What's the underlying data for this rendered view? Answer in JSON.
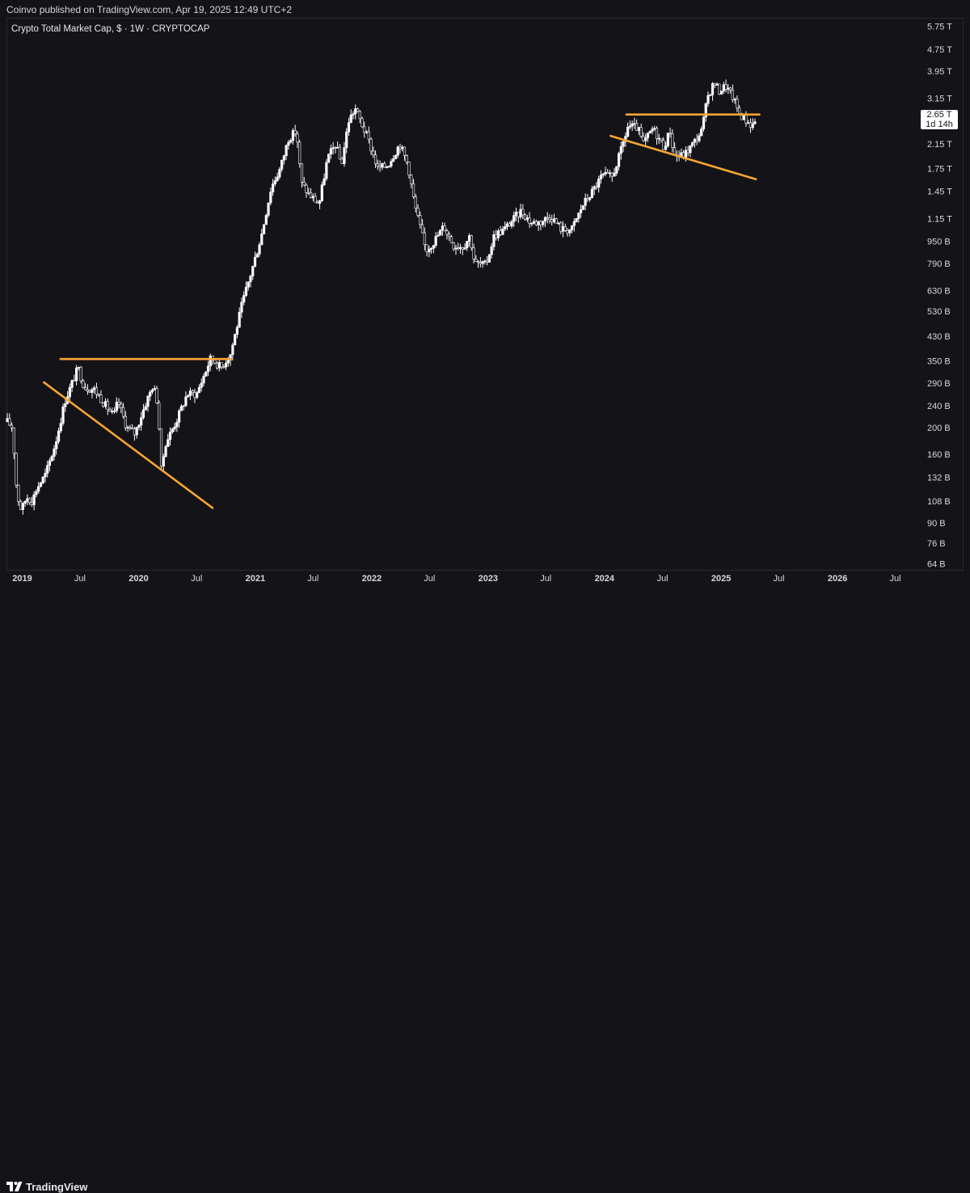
{
  "header": {
    "published_text": "Coinvo published on TradingView.com, Apr 19, 2025 12:49 UTC+2"
  },
  "legend": {
    "title": "Crypto Total Market Cap, $ · 1W · CRYPTOCAP"
  },
  "price_label": {
    "value": "2.65 T",
    "countdown": "1d 14h"
  },
  "footer": {
    "brand": "TradingView",
    "logo_icon": "tradingview-logo-icon"
  },
  "colors": {
    "background": "#141318",
    "candle": "#ffffff",
    "trendline": "#f7a531",
    "axis_text": "#d8d8dc"
  },
  "chart_data": {
    "type": "candlestick",
    "title": "Crypto Total Market Cap, $ · 1W · CRYPTOCAP",
    "y_scale": "log",
    "y_unit": "USD",
    "y_ticks": [
      "5.75 T",
      "4.75 T",
      "3.95 T",
      "3.15 T",
      "2.65 T",
      "2.15 T",
      "1.75 T",
      "1.45 T",
      "1.15 T",
      "950 B",
      "790 B",
      "630 B",
      "530 B",
      "430 B",
      "350 B",
      "290 B",
      "240 B",
      "200 B",
      "160 B",
      "132 B",
      "108 B",
      "90 B",
      "76 B",
      "64 B"
    ],
    "y_tick_values": [
      5750,
      4750,
      3950,
      3150,
      2650,
      2150,
      1750,
      1450,
      1150,
      950,
      790,
      630,
      530,
      430,
      350,
      290,
      240,
      200,
      160,
      132,
      108,
      90,
      76,
      64
    ],
    "x_ticks": [
      "2019",
      "Jul",
      "2020",
      "Jul",
      "2021",
      "Jul",
      "2022",
      "Jul",
      "2023",
      "Jul",
      "2024",
      "Jul",
      "2025",
      "Jul",
      "2026",
      "Jul"
    ],
    "x_tick_dates": [
      "2019-01-01",
      "2019-07-01",
      "2020-01-01",
      "2020-07-01",
      "2021-01-01",
      "2021-07-01",
      "2022-01-01",
      "2022-07-01",
      "2023-01-01",
      "2023-07-01",
      "2024-01-01",
      "2024-07-01",
      "2025-01-01",
      "2025-07-01",
      "2026-01-01",
      "2026-07-01"
    ],
    "x_range": [
      "2018-11-15",
      "2026-09-01"
    ],
    "y_range_billions": [
      62,
      6100
    ],
    "last_price": "2.65 T",
    "series_anchors": [
      {
        "date": "2018-11-15",
        "close": 210
      },
      {
        "date": "2018-12-01",
        "close": 200
      },
      {
        "date": "2018-12-15",
        "close": 115
      },
      {
        "date": "2018-12-29",
        "close": 100
      },
      {
        "date": "2019-01-15",
        "close": 112
      },
      {
        "date": "2019-02-01",
        "close": 108
      },
      {
        "date": "2019-02-15",
        "close": 120
      },
      {
        "date": "2019-03-15",
        "close": 135
      },
      {
        "date": "2019-04-15",
        "close": 175
      },
      {
        "date": "2019-05-15",
        "close": 250
      },
      {
        "date": "2019-06-25",
        "close": 330
      },
      {
        "date": "2019-07-15",
        "close": 280
      },
      {
        "date": "2019-08-15",
        "close": 275
      },
      {
        "date": "2019-09-20",
        "close": 240
      },
      {
        "date": "2019-10-15",
        "close": 220
      },
      {
        "date": "2019-10-28",
        "close": 250
      },
      {
        "date": "2019-11-25",
        "close": 200
      },
      {
        "date": "2019-12-20",
        "close": 190
      },
      {
        "date": "2020-01-20",
        "close": 240
      },
      {
        "date": "2020-02-15",
        "close": 285
      },
      {
        "date": "2020-03-01",
        "close": 245
      },
      {
        "date": "2020-03-12",
        "close": 140
      },
      {
        "date": "2020-03-25",
        "close": 175
      },
      {
        "date": "2020-05-01",
        "close": 215
      },
      {
        "date": "2020-06-01",
        "close": 265
      },
      {
        "date": "2020-07-01",
        "close": 265
      },
      {
        "date": "2020-08-15",
        "close": 360
      },
      {
        "date": "2020-09-15",
        "close": 330
      },
      {
        "date": "2020-10-15",
        "close": 370
      },
      {
        "date": "2020-11-20",
        "close": 560
      },
      {
        "date": "2020-12-20",
        "close": 740
      },
      {
        "date": "2021-01-20",
        "close": 1000
      },
      {
        "date": "2021-02-20",
        "close": 1500
      },
      {
        "date": "2021-03-20",
        "close": 1750
      },
      {
        "date": "2021-04-15",
        "close": 2250
      },
      {
        "date": "2021-05-10",
        "close": 2400
      },
      {
        "date": "2021-05-25",
        "close": 1550
      },
      {
        "date": "2021-06-20",
        "close": 1400
      },
      {
        "date": "2021-07-20",
        "close": 1300
      },
      {
        "date": "2021-08-15",
        "close": 1900
      },
      {
        "date": "2021-09-10",
        "close": 2150
      },
      {
        "date": "2021-09-28",
        "close": 1800
      },
      {
        "date": "2021-10-20",
        "close": 2600
      },
      {
        "date": "2021-11-10",
        "close": 2900
      },
      {
        "date": "2021-11-30",
        "close": 2550
      },
      {
        "date": "2021-12-20",
        "close": 2250
      },
      {
        "date": "2022-01-20",
        "close": 1750
      },
      {
        "date": "2022-02-20",
        "close": 1800
      },
      {
        "date": "2022-03-30",
        "close": 2150
      },
      {
        "date": "2022-04-25",
        "close": 1800
      },
      {
        "date": "2022-05-15",
        "close": 1300
      },
      {
        "date": "2022-06-20",
        "close": 880
      },
      {
        "date": "2022-07-15",
        "close": 950
      },
      {
        "date": "2022-08-15",
        "close": 1080
      },
      {
        "date": "2022-09-15",
        "close": 920
      },
      {
        "date": "2022-10-15",
        "close": 910
      },
      {
        "date": "2022-11-05",
        "close": 1000
      },
      {
        "date": "2022-11-20",
        "close": 790
      },
      {
        "date": "2022-12-25",
        "close": 780
      },
      {
        "date": "2023-01-20",
        "close": 1000
      },
      {
        "date": "2023-02-20",
        "close": 1050
      },
      {
        "date": "2023-04-15",
        "close": 1230
      },
      {
        "date": "2023-05-15",
        "close": 1110
      },
      {
        "date": "2023-06-15",
        "close": 1120
      },
      {
        "date": "2023-07-15",
        "close": 1180
      },
      {
        "date": "2023-08-20",
        "close": 1050
      },
      {
        "date": "2023-09-20",
        "close": 1050
      },
      {
        "date": "2023-10-25",
        "close": 1290
      },
      {
        "date": "2023-11-25",
        "close": 1450
      },
      {
        "date": "2023-12-25",
        "close": 1650
      },
      {
        "date": "2024-01-25",
        "close": 1630
      },
      {
        "date": "2024-02-20",
        "close": 2000
      },
      {
        "date": "2024-03-15",
        "close": 2500
      },
      {
        "date": "2024-04-15",
        "close": 2450
      },
      {
        "date": "2024-05-01",
        "close": 2150
      },
      {
        "date": "2024-06-01",
        "close": 2450
      },
      {
        "date": "2024-07-05",
        "close": 2100
      },
      {
        "date": "2024-07-25",
        "close": 2400
      },
      {
        "date": "2024-08-06",
        "close": 1950
      },
      {
        "date": "2024-09-06",
        "close": 1950
      },
      {
        "date": "2024-10-10",
        "close": 2200
      },
      {
        "date": "2024-11-01",
        "close": 2400
      },
      {
        "date": "2024-11-20",
        "close": 3200
      },
      {
        "date": "2024-12-10",
        "close": 3600
      },
      {
        "date": "2024-12-25",
        "close": 3350
      },
      {
        "date": "2025-01-15",
        "close": 3500
      },
      {
        "date": "2025-02-05",
        "close": 3200
      },
      {
        "date": "2025-03-01",
        "close": 2750
      },
      {
        "date": "2025-04-08",
        "close": 2500
      },
      {
        "date": "2025-04-19",
        "close": 2650
      }
    ],
    "trendlines": [
      {
        "from": {
          "date": "2019-05-01",
          "value": 355
        },
        "to": {
          "date": "2020-10-15",
          "value": 355
        }
      },
      {
        "from": {
          "date": "2019-03-10",
          "value": 292
        },
        "to": {
          "date": "2020-08-20",
          "value": 102
        }
      },
      {
        "from": {
          "date": "2024-03-10",
          "value": 2750
        },
        "to": {
          "date": "2025-05-01",
          "value": 2750
        }
      },
      {
        "from": {
          "date": "2024-01-20",
          "value": 2300
        },
        "to": {
          "date": "2025-04-20",
          "value": 1600
        }
      }
    ]
  }
}
